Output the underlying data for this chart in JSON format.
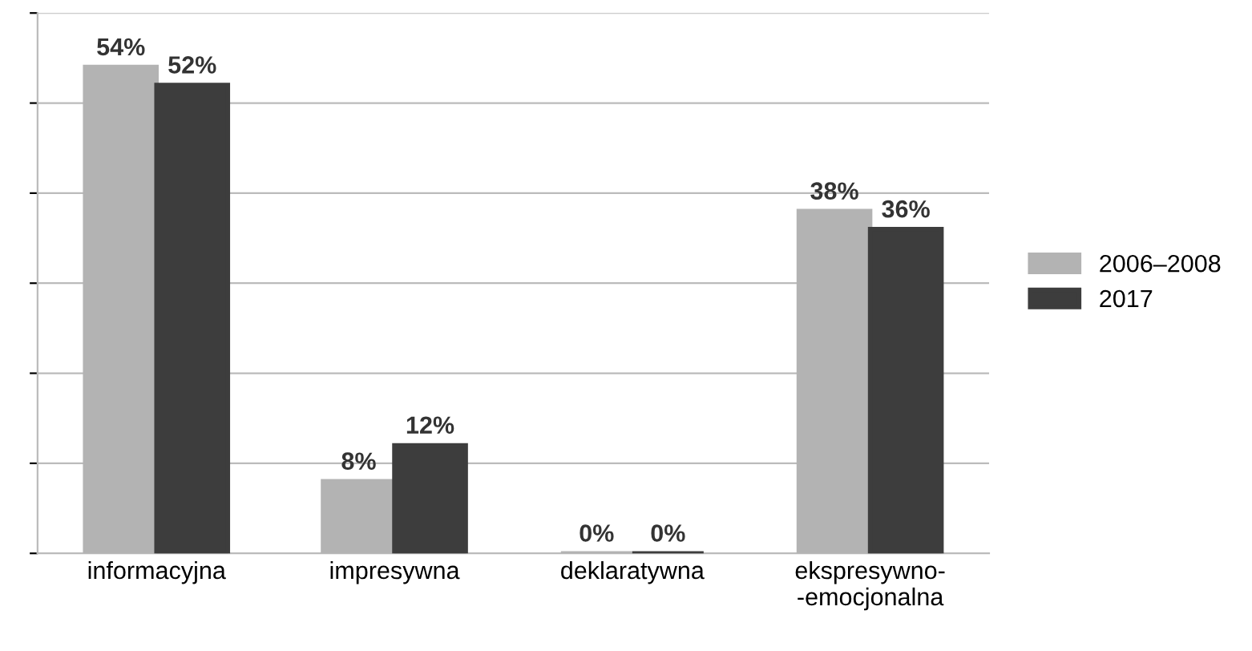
{
  "chart_data": {
    "type": "bar",
    "categories": [
      "informacyjna",
      "impresywna",
      "deklaratywna",
      "ekspresywno-\n-emocjonalna"
    ],
    "series": [
      {
        "name": "2006–2008",
        "color": "#b3b3b3",
        "values": [
          54,
          8,
          0,
          38
        ],
        "value_labels": [
          "54%",
          "8%",
          "0%",
          "38%"
        ]
      },
      {
        "name": "2017",
        "color": "#3d3d3d",
        "values": [
          52,
          12,
          0,
          36
        ],
        "value_labels": [
          "52%",
          "12%",
          "0%",
          "36%"
        ]
      }
    ],
    "ylim": [
      0,
      60
    ],
    "yticks": [
      {
        "value": 0,
        "label": null
      },
      {
        "value": 10,
        "label": null
      },
      {
        "value": 20,
        "label": null
      },
      {
        "value": 30,
        "label": null
      },
      {
        "value": 40,
        "label": null
      },
      {
        "value": 50,
        "label": null
      },
      {
        "value": 60,
        "label": null
      }
    ],
    "tick_labels": "x",
    "grid": "y",
    "legend": "right"
  }
}
